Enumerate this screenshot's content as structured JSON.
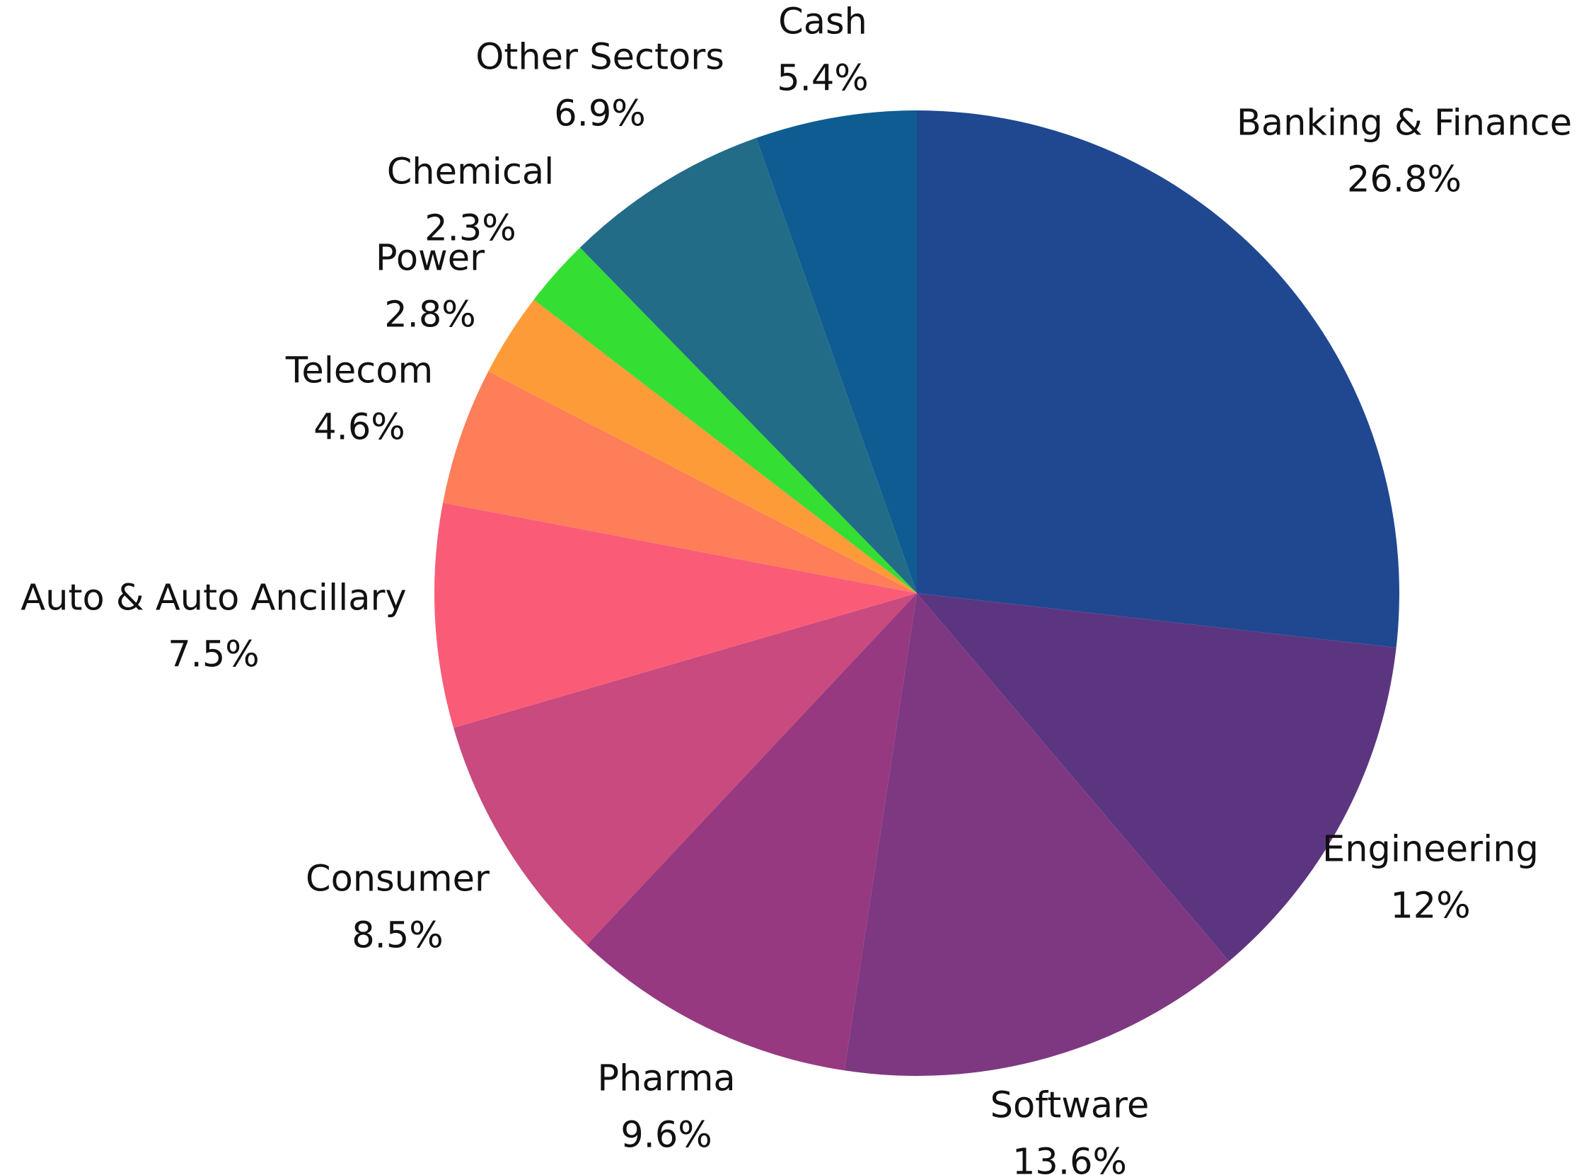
{
  "chart_data": {
    "type": "pie",
    "title": "",
    "start_angle": "12 o'clock",
    "direction": "clockwise",
    "slices": [
      {
        "label": "Banking & Finance",
        "value": 26.8,
        "value_label": "26.8%",
        "color": "#1f4891"
      },
      {
        "label": "Engineering",
        "value": 12,
        "value_label": "12%",
        "color": "#5c3581"
      },
      {
        "label": "Software",
        "value": 13.6,
        "value_label": "13.6%",
        "color": "#7e3882"
      },
      {
        "label": "Pharma",
        "value": 9.6,
        "value_label": "9.6%",
        "color": "#963980"
      },
      {
        "label": "Consumer",
        "value": 8.5,
        "value_label": "8.5%",
        "color": "#c84a7e"
      },
      {
        "label": "Auto & Auto Ancillary",
        "value": 7.5,
        "value_label": "7.5%",
        "color": "#fa5c78"
      },
      {
        "label": "Telecom",
        "value": 4.6,
        "value_label": "4.6%",
        "color": "#fe7e59"
      },
      {
        "label": "Power",
        "value": 2.8,
        "value_label": "2.8%",
        "color": "#fe9b39"
      },
      {
        "label": "Chemical",
        "value": 2.3,
        "value_label": "2.3%",
        "color": "#35de33"
      },
      {
        "label": "Other Sectors",
        "value": 6.9,
        "value_label": "6.9%",
        "color": "#236c87"
      },
      {
        "label": "Cash",
        "value": 5.4,
        "value_label": "5.4%",
        "color": "#0f5c92"
      }
    ]
  }
}
